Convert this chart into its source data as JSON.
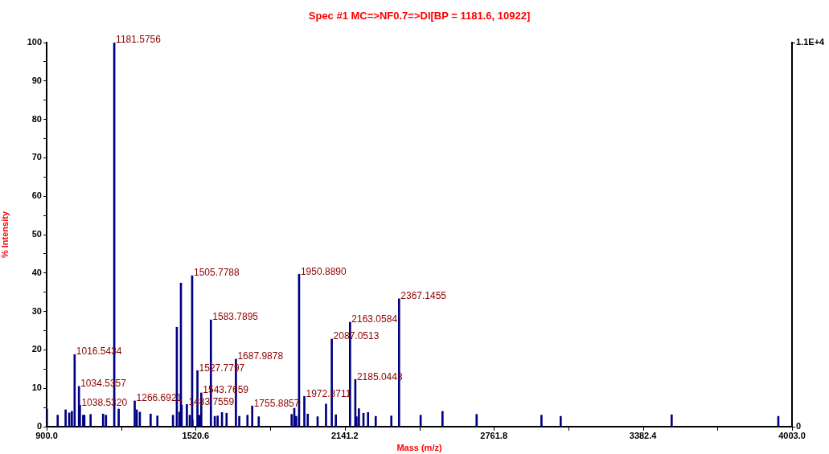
{
  "chart_data": {
    "type": "bar",
    "title": "Spec #1 MC=>NF0.7=>DI[BP = 1181.6, 10922]",
    "xlabel": "Mass (m/z)",
    "ylabel": "% Intensity",
    "x": [
      901,
      946,
      979,
      994,
      1005,
      1016.5434,
      1034.5357,
      1038.532,
      1052,
      1057,
      1083,
      1135,
      1147,
      1181.5756,
      1200,
      1266.6921,
      1275,
      1288,
      1333,
      1361,
      1426,
      1442,
      1453,
      1459,
      1462,
      1483.7559,
      1496,
      1505.7788,
      1507,
      1527.7797,
      1535,
      1543.7659,
      1583.7895,
      1600,
      1612,
      1630,
      1649,
      1687.9878,
      1702,
      1736,
      1755.8857,
      1783,
      1920,
      1931,
      1939,
      1950.889,
      1972.8711,
      1987,
      2028,
      2063,
      2087.0513,
      2104,
      2163.0584,
      2185.0443,
      2190,
      2200,
      2219,
      2238,
      2270,
      2335,
      2367.1455,
      2457,
      2548,
      2690,
      2960,
      3040,
      3502,
      3946
    ],
    "series": [
      {
        "color": "#000080",
        "values": [
          4.6,
          3.0,
          4.4,
          3.6,
          4.0,
          18.8,
          10.5,
          5.6,
          3.0,
          3.0,
          3.2,
          3.3,
          3.0,
          100,
          4.6,
          6.7,
          4.4,
          3.8,
          3.3,
          2.8,
          3.0,
          25.9,
          3.8,
          37.4,
          5.6,
          5.8,
          3.0,
          39.3,
          1.8,
          14.6,
          3.0,
          8.8,
          27.8,
          2.7,
          2.8,
          3.7,
          3.5,
          17.6,
          2.7,
          3.0,
          5.4,
          2.6,
          3.2,
          4.8,
          2.7,
          39.7,
          7.9,
          3.3,
          2.6,
          5.9,
          22.8,
          3.1,
          27.2,
          12.3,
          2.6,
          4.7,
          3.5,
          3.7,
          2.7,
          2.8,
          33.3,
          3.0,
          4.0,
          3.2,
          3.0,
          2.7,
          3.1,
          2.7
        ]
      }
    ],
    "xlim": [
      900,
      4003
    ],
    "xticks": [
      {
        "value": 900,
        "label": "900.0"
      },
      {
        "value": 1210.3,
        "label": null
      },
      {
        "value": 1520.6,
        "label": "1520.6"
      },
      {
        "value": 1830.9,
        "label": null
      },
      {
        "value": 2141.2,
        "label": "2141.2"
      },
      {
        "value": 2451.5,
        "label": null
      },
      {
        "value": 2761.8,
        "label": "2761.8"
      },
      {
        "value": 3072.1,
        "label": null
      },
      {
        "value": 3382.4,
        "label": "3382.4"
      },
      {
        "value": 3692.7,
        "label": null
      },
      {
        "value": 4003,
        "label": "4003.0"
      }
    ],
    "ylim": [
      0,
      100
    ],
    "yticks": [
      0,
      {
        "value": 5,
        "label": null
      },
      10,
      {
        "value": 15,
        "label": null
      },
      20,
      {
        "value": 25,
        "label": null
      },
      30,
      {
        "value": 35,
        "label": null
      },
      40,
      {
        "value": 45,
        "label": null
      },
      50,
      {
        "value": 55,
        "label": null
      },
      60,
      {
        "value": 65,
        "label": null
      },
      70,
      {
        "value": 75,
        "label": null
      },
      80,
      {
        "value": 85,
        "label": null
      },
      90,
      {
        "value": 95,
        "label": null
      },
      100
    ],
    "y2lim": [
      0,
      10922
    ],
    "y2ticks": [
      0,
      {
        "value": 10922,
        "label": "1.1E+4"
      }
    ],
    "annotations": [
      {
        "text": "1181.5756",
        "x": 1181.5756,
        "y": 100
      },
      {
        "text": "1016.5434",
        "x": 1016.5434,
        "y": 18.8
      },
      {
        "text": "1034.5357",
        "x": 1034.5357,
        "y": 10.5
      },
      {
        "text": "1038.5320",
        "x": 1038.532,
        "y": 5.6
      },
      {
        "text": "1266.6921",
        "x": 1266.6921,
        "y": 6.7
      },
      {
        "text": "1483.7559",
        "x": 1483.7559,
        "y": 5.8
      },
      {
        "text": "1505.7788",
        "x": 1505.7788,
        "y": 39.3
      },
      {
        "text": "1527.7797",
        "x": 1527.7797,
        "y": 14.6
      },
      {
        "text": "1543.7659",
        "x": 1543.7659,
        "y": 8.8
      },
      {
        "text": "1583.7895",
        "x": 1583.7895,
        "y": 27.8
      },
      {
        "text": "1687.9878",
        "x": 1687.9878,
        "y": 17.6
      },
      {
        "text": "1755.8857",
        "x": 1755.8857,
        "y": 5.4
      },
      {
        "text": "1950.8890",
        "x": 1950.889,
        "y": 39.7
      },
      {
        "text": "1972.8711",
        "x": 1972.8711,
        "y": 7.9
      },
      {
        "text": "2087.0513",
        "x": 2087.0513,
        "y": 22.8
      },
      {
        "text": "2163.0584",
        "x": 2163.0584,
        "y": 27.2
      },
      {
        "text": "2185.0443",
        "x": 2185.0443,
        "y": 12.3
      },
      {
        "text": "2367.1455",
        "x": 2367.1455,
        "y": 33.3
      }
    ],
    "grid": false,
    "legend": false
  }
}
